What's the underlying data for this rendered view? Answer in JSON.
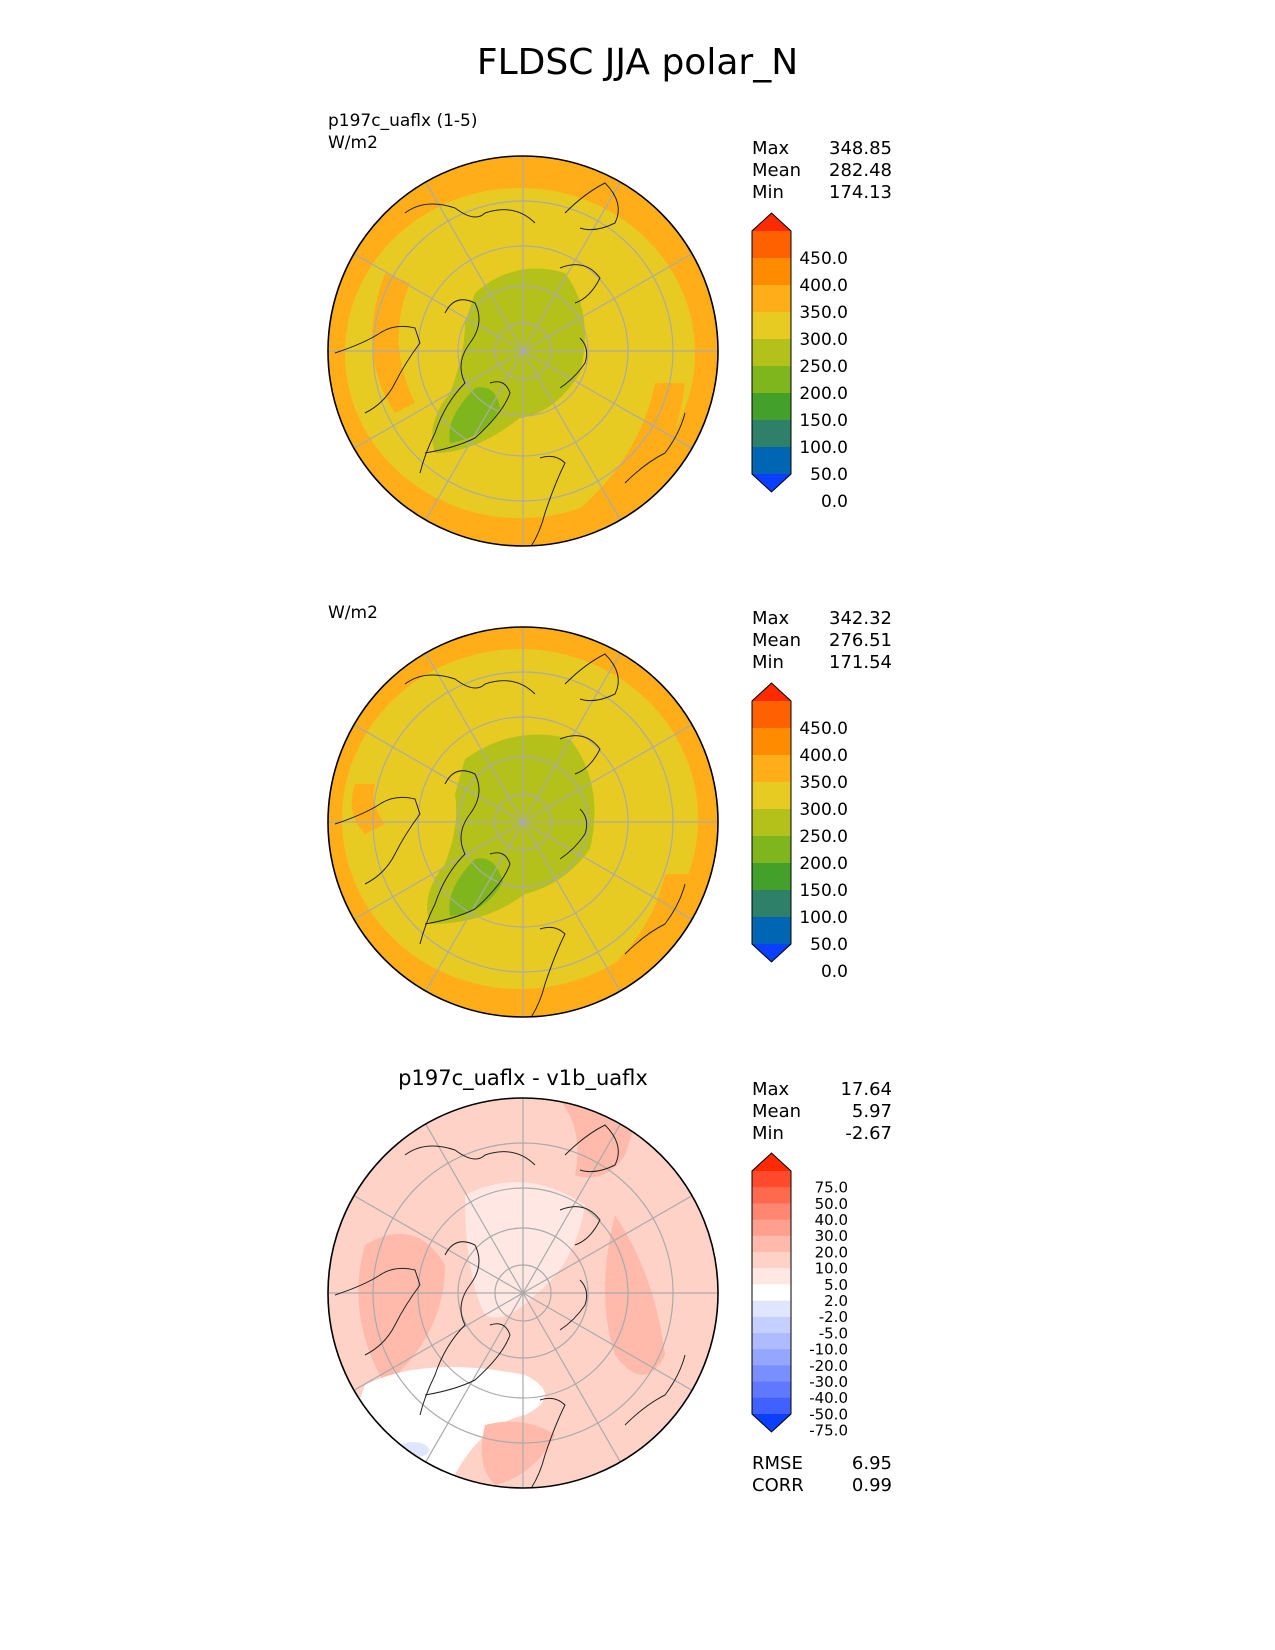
{
  "title": "FLDSC JJA polar_N",
  "panels": [
    {
      "id": "test",
      "header_line1": "p197c_uaflx (1-5)",
      "header_line2": "W/m2",
      "center_title": "",
      "stats": [
        {
          "label": "Max",
          "value": "348.85"
        },
        {
          "label": "Mean",
          "value": "282.48"
        },
        {
          "label": "Min",
          "value": "174.13"
        }
      ],
      "colorbar_ticks": [
        "450.0",
        "400.0",
        "350.0",
        "300.0",
        "250.0",
        "200.0",
        "150.0",
        "100.0",
        "50.0",
        "0.0"
      ],
      "colorbar_colors": [
        "#ff2a00",
        "#ff6000",
        "#ff8c00",
        "#ffae1a",
        "#e8cb22",
        "#b5c11b",
        "#7fb61d",
        "#43a02a",
        "#2e8068",
        "#0065b2",
        "#0a3fff"
      ]
    },
    {
      "id": "reference",
      "header_line1": "",
      "header_line2": "W/m2",
      "center_title": "",
      "stats": [
        {
          "label": "Max",
          "value": "342.32"
        },
        {
          "label": "Mean",
          "value": "276.51"
        },
        {
          "label": "Min",
          "value": "171.54"
        }
      ],
      "colorbar_ticks": [
        "450.0",
        "400.0",
        "350.0",
        "300.0",
        "250.0",
        "200.0",
        "150.0",
        "100.0",
        "50.0",
        "0.0"
      ],
      "colorbar_colors": [
        "#ff2a00",
        "#ff6000",
        "#ff8c00",
        "#ffae1a",
        "#e8cb22",
        "#b5c11b",
        "#7fb61d",
        "#43a02a",
        "#2e8068",
        "#0065b2",
        "#0a3fff"
      ]
    },
    {
      "id": "difference",
      "header_line1": "",
      "header_line2": "",
      "center_title": "p197c_uaflx - v1b_uaflx",
      "stats": [
        {
          "label": "Max",
          "value": "17.64"
        },
        {
          "label": "Mean",
          "value": "5.97"
        },
        {
          "label": "Min",
          "value": "-2.67"
        }
      ],
      "colorbar_ticks": [
        "75.0",
        "50.0",
        "40.0",
        "30.0",
        "20.0",
        "10.0",
        "5.0",
        "2.0",
        "-2.0",
        "-5.0",
        "-10.0",
        "-20.0",
        "-30.0",
        "-40.0",
        "-50.0",
        "-75.0"
      ],
      "colorbar_colors": [
        "#ff2a00",
        "#ff4b2c",
        "#ff6a4f",
        "#ff8670",
        "#ffa08e",
        "#ffbaab",
        "#ffd2c8",
        "#ffe8e3",
        "#ffffff",
        "#e0e6ff",
        "#c6d0ff",
        "#aebcff",
        "#94a6ff",
        "#7a8fff",
        "#5f78ff",
        "#4060ff",
        "#0a3fff"
      ],
      "metrics": [
        {
          "label": "RMSE",
          "value": "6.95"
        },
        {
          "label": "CORR",
          "value": "0.99"
        }
      ]
    }
  ]
}
